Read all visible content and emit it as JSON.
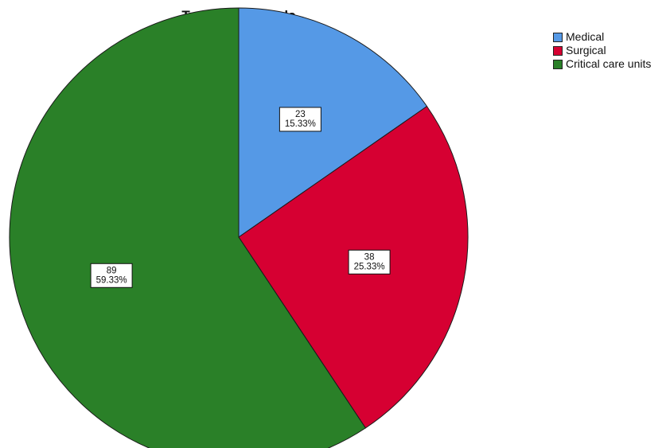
{
  "chart_data": {
    "type": "pie",
    "title": "Type of the wards",
    "slices": [
      {
        "label": "Medical",
        "value": 23,
        "percent": "15.33%",
        "color": "#5599e6"
      },
      {
        "label": "Surgical",
        "value": 38,
        "percent": "25.33%",
        "color": "#d60032"
      },
      {
        "label": "Critical care units",
        "value": 89,
        "percent": "59.33%",
        "color": "#2a8028"
      }
    ],
    "legend_position": "top-right",
    "start_direction": "12 o'clock",
    "order": "clockwise"
  }
}
